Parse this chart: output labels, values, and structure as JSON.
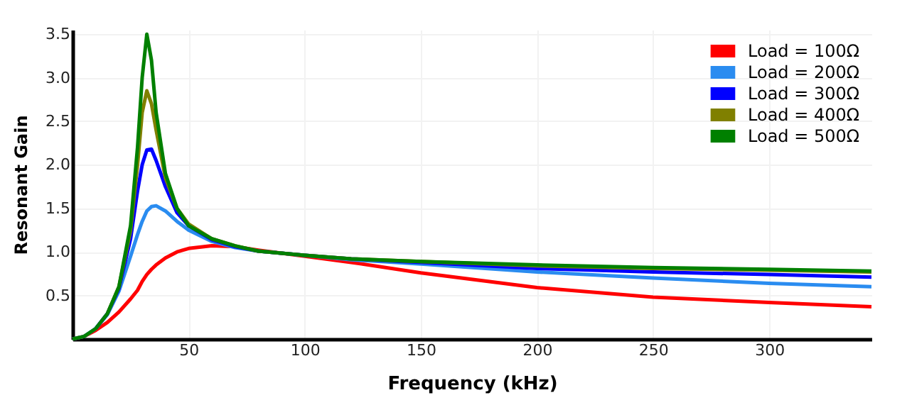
{
  "chart_data": {
    "type": "line",
    "xlabel": "Frequency (kHz)",
    "ylabel": "Resonant Gain",
    "x": [
      0,
      5,
      10,
      15,
      20,
      25,
      28,
      30,
      32,
      34,
      36,
      40,
      45,
      50,
      60,
      70,
      80,
      100,
      120,
      150,
      200,
      250,
      300,
      344
    ],
    "series": [
      {
        "name": "Load = 100Ω",
        "color": "#ff0000",
        "values": [
          0,
          0.03,
          0.1,
          0.19,
          0.31,
          0.46,
          0.56,
          0.66,
          0.74,
          0.8,
          0.85,
          0.93,
          1.0,
          1.04,
          1.07,
          1.06,
          1.02,
          0.95,
          0.88,
          0.76,
          0.59,
          0.48,
          0.42,
          0.37
        ]
      },
      {
        "name": "Load = 200Ω",
        "color": "#2a8cf0",
        "values": [
          0,
          0.03,
          0.12,
          0.28,
          0.55,
          0.95,
          1.2,
          1.35,
          1.47,
          1.52,
          1.53,
          1.47,
          1.35,
          1.25,
          1.12,
          1.05,
          1.01,
          0.96,
          0.91,
          0.86,
          0.77,
          0.7,
          0.64,
          0.6
        ]
      },
      {
        "name": "Load = 300Ω",
        "color": "#0000ff",
        "values": [
          null,
          null,
          0.12,
          0.29,
          0.58,
          1.15,
          1.7,
          2.0,
          2.17,
          2.18,
          2.05,
          1.75,
          1.45,
          1.3,
          1.14,
          1.06,
          1.01,
          0.96,
          0.92,
          0.88,
          0.81,
          0.77,
          0.74,
          0.71
        ]
      },
      {
        "name": "Load = 400Ω",
        "color": "#808000",
        "values": [
          null,
          null,
          null,
          0.29,
          0.6,
          1.25,
          2.0,
          2.6,
          2.85,
          2.7,
          2.4,
          1.85,
          1.5,
          1.32,
          1.15,
          1.07,
          1.01,
          0.96,
          0.92,
          0.89,
          0.84,
          0.81,
          0.79,
          0.77
        ]
      },
      {
        "name": "Load = 500Ω",
        "color": "#008000",
        "values": [
          0,
          0.03,
          0.12,
          0.29,
          0.6,
          1.3,
          2.2,
          3.0,
          3.5,
          3.2,
          2.6,
          1.9,
          1.5,
          1.3,
          1.15,
          1.07,
          1.01,
          0.96,
          0.92,
          0.89,
          0.85,
          0.82,
          0.8,
          0.78
        ]
      }
    ],
    "xlim": [
      0,
      344
    ],
    "ylim": [
      0,
      3.55
    ],
    "xticks": [
      50,
      100,
      150,
      200,
      250,
      300
    ],
    "yticks": [
      0.5,
      {
        "value": 1,
        "label": "1.0"
      },
      1.5,
      {
        "value": 2,
        "label": "2.0"
      },
      2.5,
      {
        "value": 3,
        "label": "3.0"
      },
      3.5
    ],
    "grid": true,
    "legend": "top right",
    "marker": "none",
    "line_style": "solid"
  }
}
